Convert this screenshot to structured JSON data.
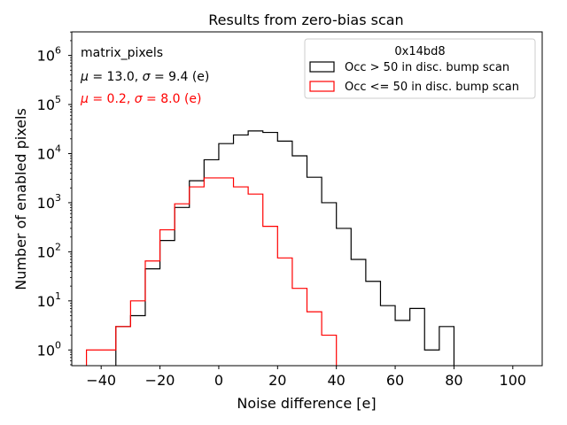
{
  "chart_data": {
    "type": "histogram",
    "title": "Results from zero-bias scan",
    "xlabel": "Noise difference [e]",
    "ylabel": "Number of enabled pixels",
    "xlim": [
      -50,
      110
    ],
    "ylim_exp": [
      -0.32,
      6.48
    ],
    "yscale": "log",
    "xticks": [
      -40,
      -20,
      0,
      20,
      40,
      60,
      80,
      100
    ],
    "yticks": [
      {
        "exp": 0,
        "base": "10",
        "sup": "0"
      },
      {
        "exp": 1,
        "base": "10",
        "sup": "1"
      },
      {
        "exp": 2,
        "base": "10",
        "sup": "2"
      },
      {
        "exp": 3,
        "base": "10",
        "sup": "3"
      },
      {
        "exp": 4,
        "base": "10",
        "sup": "4"
      },
      {
        "exp": 5,
        "base": "10",
        "sup": "5"
      },
      {
        "exp": 6,
        "base": "10",
        "sup": "6"
      }
    ],
    "bin_edges": [
      -45,
      -40,
      -35,
      -30,
      -25,
      -20,
      -15,
      -10,
      -5,
      0,
      5,
      10,
      15,
      20,
      25,
      30,
      35,
      40,
      45,
      50,
      55,
      60,
      65,
      70,
      75,
      80
    ],
    "series": [
      {
        "name": "Occ > 50 in disc. bump scan",
        "color": "#000000",
        "values": [
          0,
          0,
          3,
          5,
          45,
          170,
          800,
          2800,
          7500,
          16000,
          24000,
          29000,
          27000,
          18000,
          9000,
          3300,
          1000,
          300,
          70,
          25,
          8,
          4,
          7,
          1,
          3
        ]
      },
      {
        "name": "Occ <= 50 in disc. bump scan",
        "color": "#ff0000",
        "values": [
          1,
          1,
          3,
          10,
          65,
          280,
          950,
          2100,
          3200,
          3200,
          2100,
          1500,
          330,
          75,
          18,
          6,
          2,
          0,
          0,
          0,
          0,
          0,
          0,
          0,
          0
        ]
      }
    ],
    "annotations": [
      {
        "text": "matrix_pixels",
        "color": "#000000",
        "mathA": "",
        "valA": "",
        "mathB": "",
        "valB": ""
      },
      {
        "text": "",
        "color": "#000000",
        "mathA": "μ",
        "valA": " = 13.0, ",
        "mathB": "σ",
        "valB": " = 9.4 (e)"
      },
      {
        "text": "",
        "color": "#ff0000",
        "mathA": "μ",
        "valA": " = 0.2, ",
        "mathB": "σ",
        "valB": " = 8.0 (e)"
      }
    ],
    "legend": {
      "title": "0x14bd8",
      "position": "top-right"
    }
  }
}
